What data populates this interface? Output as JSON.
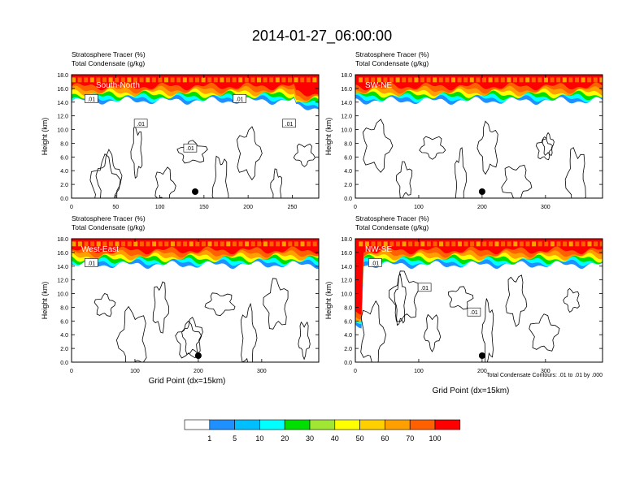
{
  "main_title": "2014-01-27_06:00:00",
  "chart_data": [
    {
      "type": "heatmap",
      "section": "South-North",
      "title_left_1": "Stratosphere Tracer   (%)",
      "title_left_2": "Total Condensate   (g/kg)",
      "ylabel": "Height (km)",
      "xlabel": "",
      "xlim": [
        0,
        280
      ],
      "ylim": [
        0,
        18
      ],
      "xticks": [
        0,
        50,
        100,
        150,
        200,
        250
      ],
      "yticks": [
        "0.0",
        "2.0",
        "4.0",
        "6.0",
        "8.0",
        "10.0",
        "12.0",
        "14.0",
        "16.0",
        "18.0"
      ],
      "contour_labels": [
        ".01",
        ".01",
        ".01",
        ".01",
        ".01"
      ],
      "marker_x": 140,
      "footnote": ""
    },
    {
      "type": "heatmap",
      "section": "SW-NE",
      "title_left_1": "Stratosphere Tracer   (%)",
      "title_left_2": "Total Condensate   (g/kg)",
      "ylabel": "Height (km)",
      "xlabel": "",
      "xlim": [
        0,
        390
      ],
      "ylim": [
        0,
        18
      ],
      "xticks": [
        0,
        100,
        200,
        300
      ],
      "yticks": [
        "0.0",
        "2.0",
        "4.0",
        "6.0",
        "8.0",
        "10.0",
        "12.0",
        "14.0",
        "16.0",
        "18.0"
      ],
      "contour_labels": [],
      "marker_x": 200,
      "footnote": ""
    },
    {
      "type": "heatmap",
      "section": "West-East",
      "title_left_1": "Stratosphere Tracer   (%)",
      "title_left_2": "Total Condensate   (g/kg)",
      "ylabel": "Height (km)",
      "xlabel": "Grid Point (dx=15km)",
      "xlim": [
        0,
        390
      ],
      "ylim": [
        0,
        18
      ],
      "xticks": [
        0,
        100,
        200,
        300
      ],
      "yticks": [
        "0.0",
        "2.0",
        "4.0",
        "6.0",
        "8.0",
        "10.0",
        "12.0",
        "14.0",
        "16.0",
        "18.0"
      ],
      "contour_labels": [
        ".01"
      ],
      "marker_x": 200,
      "footnote": ""
    },
    {
      "type": "heatmap",
      "section": "NW-SE",
      "title_left_1": "Stratosphere Tracer   (%)",
      "title_left_2": "Total Condensate   (g/kg)",
      "ylabel": "Height (km)",
      "xlabel": "Grid Point (dx=15km)",
      "xlim": [
        0,
        390
      ],
      "ylim": [
        0,
        18
      ],
      "xticks": [
        0,
        100,
        200,
        300
      ],
      "yticks": [
        "0.0",
        "2.0",
        "4.0",
        "6.0",
        "8.0",
        "10.0",
        "12.0",
        "14.0",
        "16.0",
        "18.0"
      ],
      "contour_labels": [
        ".01",
        ".01",
        ".01"
      ],
      "marker_x": 200,
      "footnote": "Total Condensate Contours: .01 to .01 by .000"
    }
  ],
  "colorbar": {
    "labels": [
      "1",
      "5",
      "10",
      "20",
      "30",
      "40",
      "50",
      "60",
      "70",
      "100"
    ],
    "colors": [
      "#ffffff",
      "#1e90ff",
      "#00bfff",
      "#00ffff",
      "#00e5a0",
      "#00e000",
      "#a0e632",
      "#ffff00",
      "#ffd000",
      "#ffa000",
      "#ff6000",
      "#ff0000"
    ]
  }
}
